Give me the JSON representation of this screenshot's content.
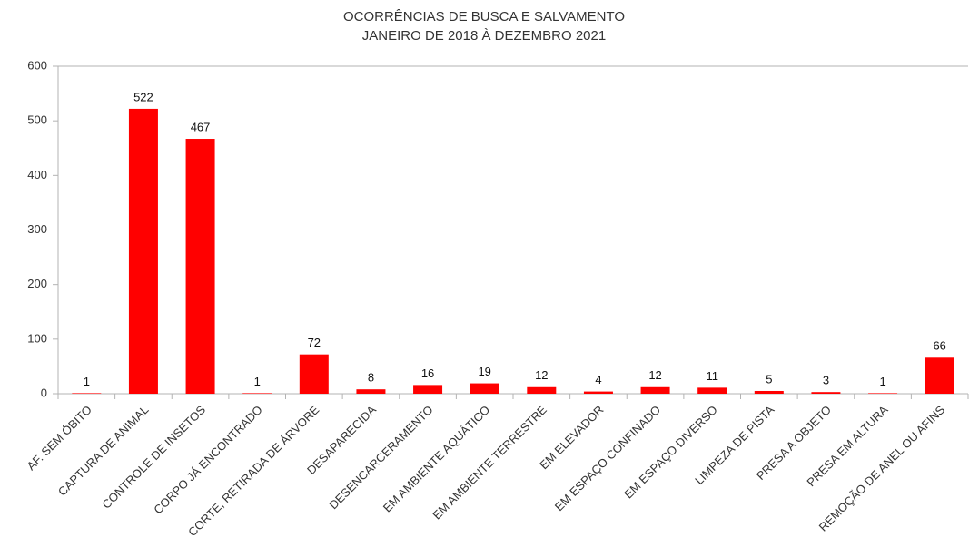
{
  "chart_data": {
    "type": "bar",
    "title": "OCORRÊNCIAS DE BUSCA E SALVAMENTO",
    "subtitle": "JANEIRO DE 2018 À DEZEMBRO 2021",
    "categories": [
      "AF. SEM ÓBITO",
      "CAPTURA DE ANIMAL",
      "CONTROLE DE INSETOS",
      "CORPO JÁ ENCONTRADO",
      "CORTE, RETIRADA DE ÁRVORE",
      "DESAPARECIDA",
      "DESENCARCERAMENTO",
      "EM AMBIENTE AQUÁTICO",
      "EM AMBIENTE TERRESTRE",
      "EM ELEVADOR",
      "EM ESPAÇO CONFINADO",
      "EM ESPAÇO DIVERSO",
      "LIMPEZA DE PISTA",
      "PRESA A OBJETO",
      "PRESA EM ALTURA",
      "REMOÇÃO DE ANEL OU AFINS"
    ],
    "values": [
      1,
      522,
      467,
      1,
      72,
      8,
      16,
      19,
      12,
      4,
      12,
      11,
      5,
      3,
      1,
      66
    ],
    "color": "#ff0000",
    "ylim": [
      0,
      600
    ],
    "yticks": [
      0,
      100,
      200,
      300,
      400,
      500,
      600
    ],
    "grid": false
  }
}
